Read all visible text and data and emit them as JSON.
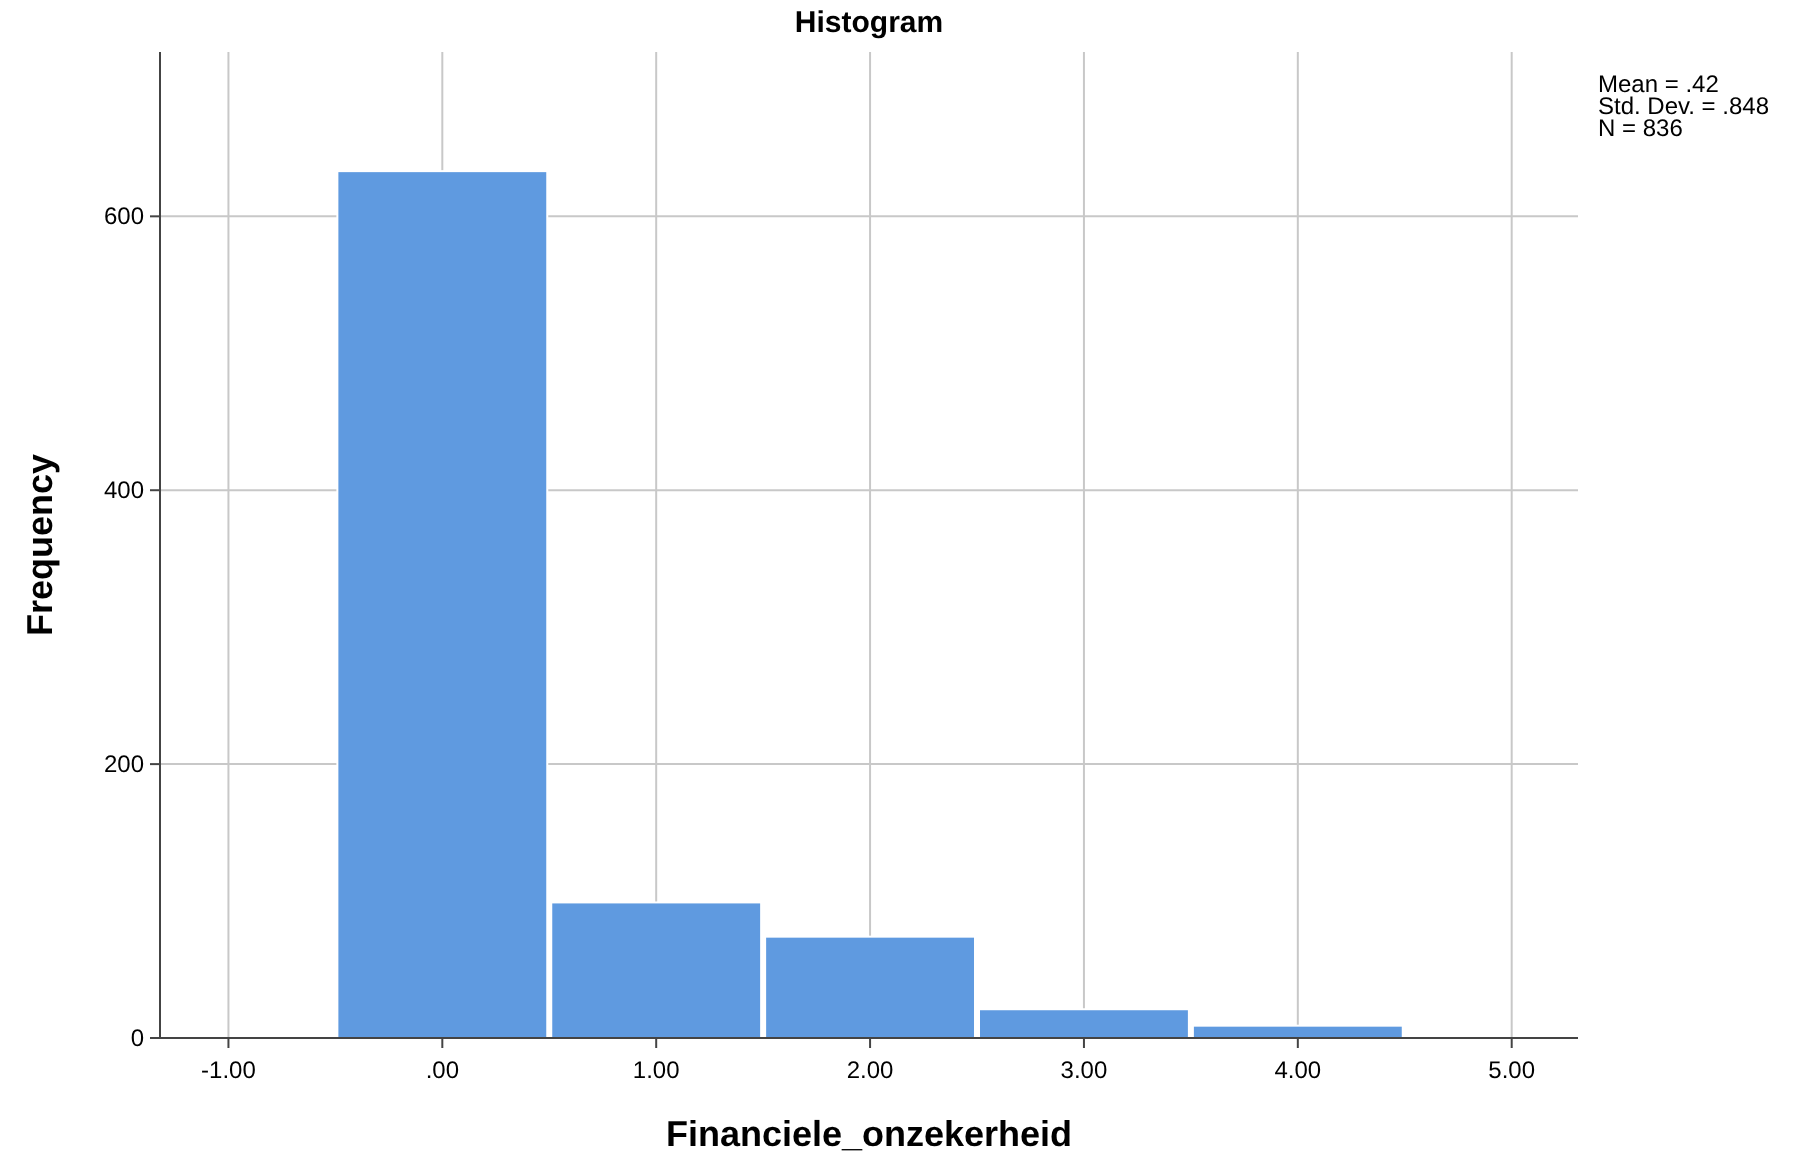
{
  "chart_data": {
    "type": "histogram",
    "title": "Histogram",
    "xlabel": "Financiele_onzekerheid",
    "ylabel": "Frequency",
    "bins": [
      -0.5,
      0.5,
      1.5,
      2.5,
      3.5,
      4.5
    ],
    "values": [
      633,
      99,
      74,
      21,
      9
    ],
    "color": "#5f9ae0",
    "xlim": [
      -1.32,
      5.31
    ],
    "xticks": [
      {
        "value": -1,
        "label": "-1.00"
      },
      {
        "value": 0,
        "label": ".00"
      },
      {
        "value": 1,
        "label": "1.00"
      },
      {
        "value": 2,
        "label": "2.00"
      },
      {
        "value": 3,
        "label": "3.00"
      },
      {
        "value": 4,
        "label": "4.00"
      },
      {
        "value": 5,
        "label": "5.00"
      }
    ],
    "ylim": [
      0,
      720
    ],
    "yticks": [
      0,
      200,
      400,
      600
    ],
    "grid": true,
    "annotations": [
      "Mean = .42",
      "Std. Dev. = .848",
      "N = 836"
    ]
  }
}
